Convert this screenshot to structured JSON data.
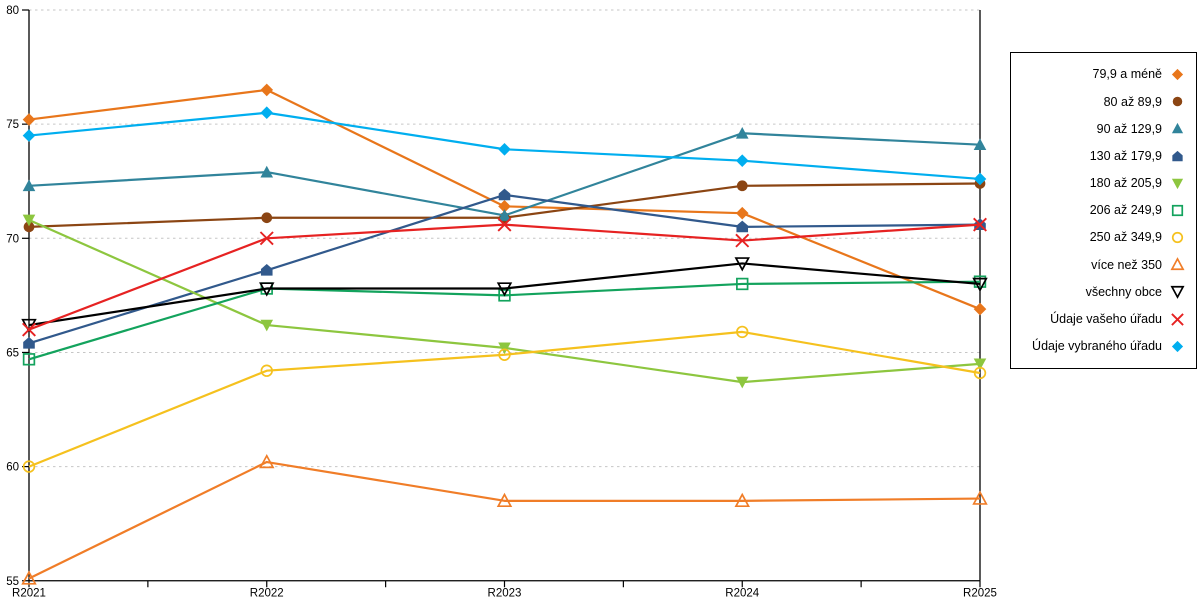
{
  "chart_data": {
    "type": "line",
    "title": "",
    "xlabel": "",
    "ylabel": "",
    "categories": [
      "R2021",
      "R2022",
      "R2023",
      "R2024",
      "R2025"
    ],
    "ylim": [
      55,
      80
    ],
    "yticks": [
      55,
      60,
      65,
      70,
      75,
      80
    ],
    "grid": "horizontal-dashed",
    "grid_color": "#c6c6c6",
    "axis_color": "#000000",
    "legend_position": "right-box",
    "series": [
      {
        "name": "79,9 a méně",
        "color": "#e8761b",
        "marker": "diamond",
        "marker_fill": "filled",
        "values": [
          75.2,
          76.5,
          71.4,
          71.1,
          66.9
        ]
      },
      {
        "name": "80 až 89,9",
        "color": "#8b4513",
        "marker": "circle",
        "marker_fill": "filled",
        "values": [
          70.5,
          70.9,
          70.9,
          72.3,
          72.4
        ]
      },
      {
        "name": "90 až 129,9",
        "color": "#31849b",
        "marker": "triangle-up",
        "marker_fill": "filled",
        "values": [
          72.3,
          72.9,
          71.0,
          74.6,
          74.1
        ]
      },
      {
        "name": "130 až 179,9",
        "color": "#31598c",
        "marker": "pentagon",
        "marker_fill": "filled",
        "values": [
          65.4,
          68.6,
          71.9,
          70.5,
          70.6
        ]
      },
      {
        "name": "180 až 205,9",
        "color": "#8dc63f",
        "marker": "triangle-down",
        "marker_fill": "filled",
        "values": [
          70.8,
          66.2,
          65.2,
          63.7,
          64.5
        ]
      },
      {
        "name": "206 až 249,9",
        "color": "#13a35d",
        "marker": "square",
        "marker_fill": "open",
        "values": [
          64.7,
          67.8,
          67.5,
          68.0,
          68.1
        ]
      },
      {
        "name": "250 až 349,9",
        "color": "#f5c11e",
        "marker": "circle",
        "marker_fill": "open",
        "values": [
          60.0,
          64.2,
          64.9,
          65.9,
          64.1
        ]
      },
      {
        "name": "více než 350",
        "color": "#f07d28",
        "marker": "triangle-up",
        "marker_fill": "open",
        "values": [
          55.1,
          60.2,
          58.5,
          58.5,
          58.6
        ]
      },
      {
        "name": "všechny obce",
        "color": "#000000",
        "marker": "triangle-down",
        "marker_fill": "open",
        "values": [
          66.2,
          67.8,
          67.8,
          68.9,
          68.0
        ]
      },
      {
        "name": "Údaje vašeho úřadu",
        "color": "#e62222",
        "marker": "x",
        "marker_fill": "open",
        "values": [
          66.0,
          70.0,
          70.6,
          69.9,
          70.6
        ]
      },
      {
        "name": "Údaje vybraného úřadu",
        "color": "#00aeef",
        "marker": "diamond",
        "marker_fill": "filled",
        "values": [
          74.5,
          75.5,
          73.9,
          73.4,
          72.6
        ]
      }
    ]
  }
}
